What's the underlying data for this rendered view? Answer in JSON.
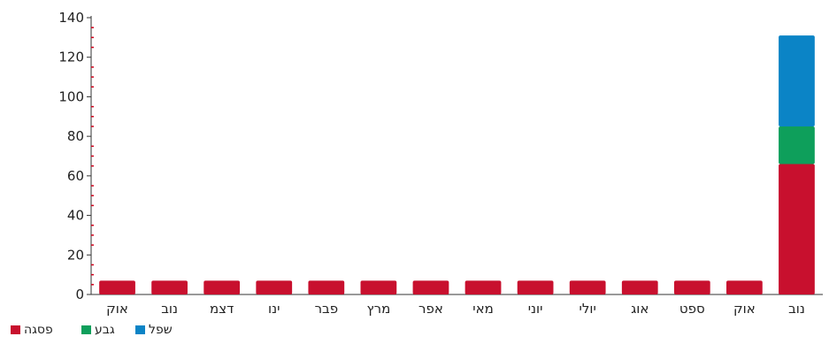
{
  "chart_data": {
    "type": "bar",
    "stacked": true,
    "categories": [
      "אוק",
      "נוב",
      "דצמ",
      "ינו",
      "פבר",
      "מרץ",
      "אפר",
      "מאי",
      "יוני",
      "יולי",
      "אוג",
      "ספט",
      "אוק",
      "נוב"
    ],
    "series": [
      {
        "name": "פסגה",
        "color": "#c8102e",
        "values": [
          7,
          7,
          7,
          7,
          7,
          7,
          7,
          7,
          7,
          7,
          7,
          7,
          7,
          66
        ]
      },
      {
        "name": "גבע",
        "color": "#0e9f5b",
        "values": [
          0,
          0,
          0,
          0,
          0,
          0,
          0,
          0,
          0,
          0,
          0,
          0,
          0,
          19
        ]
      },
      {
        "name": "שפל",
        "color": "#0b84c6",
        "values": [
          0,
          0,
          0,
          0,
          0,
          0,
          0,
          0,
          0,
          0,
          0,
          0,
          0,
          46
        ]
      }
    ],
    "y_ticks": [
      "0",
      "20",
      "40",
      "60",
      "80",
      "100",
      "120",
      "140"
    ],
    "ylim": [
      0,
      140
    ],
    "grid": false,
    "legend_position": "bottom-left",
    "xlabel": "",
    "ylabel": "",
    "title": ""
  }
}
